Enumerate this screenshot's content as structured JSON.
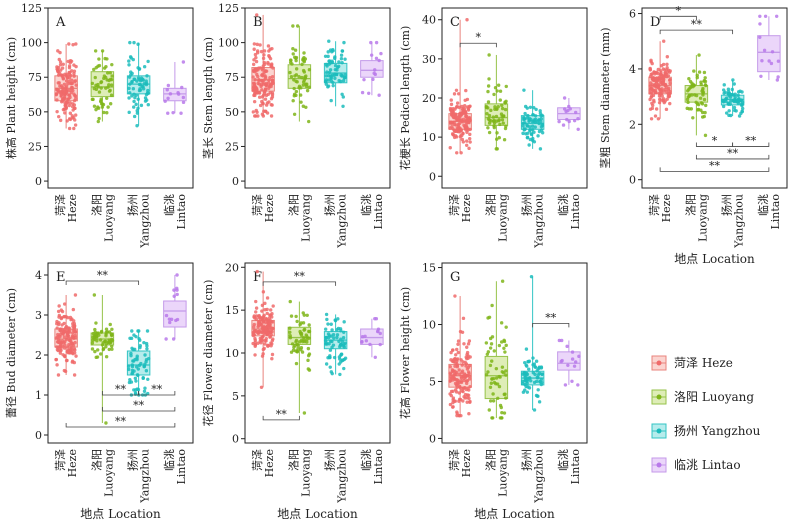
{
  "chart_data": [
    {
      "panel": "A",
      "type": "box",
      "ylabel": "株高 Plant height (cm)",
      "ylim": [
        -5,
        125
      ],
      "yticks": [
        0,
        25,
        50,
        75,
        100,
        125
      ],
      "groups": [
        {
          "n": 150,
          "q1": 58,
          "med": 67,
          "q3": 76,
          "lo": 38,
          "hi": 99
        },
        {
          "n": 60,
          "q1": 61,
          "med": 68,
          "q3": 79,
          "lo": 43,
          "hi": 94
        },
        {
          "n": 70,
          "q1": 63,
          "med": 70,
          "q3": 76,
          "lo": 40,
          "hi": 100
        },
        {
          "n": 14,
          "q1": 58,
          "med": 63,
          "q3": 67,
          "lo": 49,
          "hi": 86
        }
      ],
      "brackets": [],
      "xlabel": ""
    },
    {
      "panel": "B",
      "type": "box",
      "ylabel": "茎长 Stem length (cm)",
      "ylim": [
        -5,
        125
      ],
      "yticks": [
        0,
        25,
        50,
        75,
        100,
        125
      ],
      "groups": [
        {
          "n": 150,
          "q1": 65,
          "med": 73,
          "q3": 82,
          "lo": 47,
          "hi": 120
        },
        {
          "n": 60,
          "q1": 67,
          "med": 74,
          "q3": 84,
          "lo": 43,
          "hi": 112
        },
        {
          "n": 70,
          "q1": 71,
          "med": 78,
          "q3": 85,
          "lo": 54,
          "hi": 101
        },
        {
          "n": 14,
          "q1": 75,
          "med": 80,
          "q3": 87,
          "lo": 62,
          "hi": 100
        }
      ],
      "brackets": [],
      "xlabel": ""
    },
    {
      "panel": "C",
      "type": "box",
      "ylabel": "花梗长 Pedicel length (cm)",
      "ylim": [
        -3,
        43
      ],
      "yticks": [
        0,
        10,
        20,
        30,
        40
      ],
      "groups": [
        {
          "n": 150,
          "q1": 12,
          "med": 14,
          "q3": 16,
          "lo": 6,
          "hi": 40
        },
        {
          "n": 60,
          "q1": 13,
          "med": 15,
          "q3": 18.5,
          "lo": 7,
          "hi": 31
        },
        {
          "n": 70,
          "q1": 12,
          "med": 13.5,
          "q3": 15.5,
          "lo": 7,
          "hi": 22
        },
        {
          "n": 14,
          "q1": 14.5,
          "med": 16,
          "q3": 17.5,
          "lo": 12,
          "hi": 20
        }
      ],
      "brackets": [
        {
          "from": 0,
          "to": 1,
          "y": 34,
          "label": "*",
          "below": false
        }
      ],
      "xlabel": ""
    },
    {
      "panel": "D",
      "type": "box",
      "ylabel": "茎粗 Stem diameter (mm)",
      "ylim": [
        -0.3,
        6.2
      ],
      "yticks": [
        0,
        2,
        4,
        6
      ],
      "groups": [
        {
          "n": 150,
          "q1": 3.1,
          "med": 3.4,
          "q3": 3.7,
          "lo": 2.2,
          "hi": 5.0
        },
        {
          "n": 60,
          "q1": 2.8,
          "med": 3.1,
          "q3": 3.4,
          "lo": 1.6,
          "hi": 4.5
        },
        {
          "n": 70,
          "q1": 2.7,
          "med": 2.9,
          "q3": 3.05,
          "lo": 2.3,
          "hi": 3.6
        },
        {
          "n": 14,
          "q1": 3.9,
          "med": 4.6,
          "q3": 5.2,
          "lo": 3.6,
          "hi": 5.9
        }
      ],
      "brackets": [
        {
          "from": 0,
          "to": 1,
          "y": 5.9,
          "label": "*",
          "below": false
        },
        {
          "from": 0,
          "to": 2,
          "y": 5.4,
          "label": "**",
          "below": false
        },
        {
          "from": 2,
          "to": 3,
          "y": 1.2,
          "label": "**",
          "below": true
        },
        {
          "from": 1,
          "to": 2,
          "y": 1.2,
          "label": "*",
          "below": true
        },
        {
          "from": 1,
          "to": 3,
          "y": 0.75,
          "label": "**",
          "below": true
        },
        {
          "from": 0,
          "to": 3,
          "y": 0.3,
          "label": "**",
          "below": true
        }
      ],
      "xlabel": "地点 Location"
    },
    {
      "panel": "E",
      "type": "box",
      "ylabel": "蕾径 Bud diameter (cm)",
      "ylim": [
        -0.2,
        4.3
      ],
      "yticks": [
        0,
        1,
        2,
        3,
        4
      ],
      "groups": [
        {
          "n": 150,
          "q1": 2.2,
          "med": 2.4,
          "q3": 2.65,
          "lo": 1.5,
          "hi": 3.5
        },
        {
          "n": 60,
          "q1": 2.25,
          "med": 2.4,
          "q3": 2.55,
          "lo": 0.3,
          "hi": 3.5
        },
        {
          "n": 70,
          "q1": 1.5,
          "med": 1.75,
          "q3": 2.1,
          "lo": 1.0,
          "hi": 2.6
        },
        {
          "n": 14,
          "q1": 2.7,
          "med": 3.1,
          "q3": 3.35,
          "lo": 2.4,
          "hi": 4.0
        }
      ],
      "brackets": [
        {
          "from": 0,
          "to": 2,
          "y": 3.85,
          "label": "**",
          "below": false
        },
        {
          "from": 1,
          "to": 2,
          "y": 1.0,
          "label": "**",
          "below": true
        },
        {
          "from": 2,
          "to": 3,
          "y": 1.0,
          "label": "**",
          "below": true
        },
        {
          "from": 1,
          "to": 3,
          "y": 0.6,
          "label": "**",
          "below": true
        },
        {
          "from": 0,
          "to": 3,
          "y": 0.2,
          "label": "**",
          "below": true
        }
      ],
      "xlabel": "地点 Location"
    },
    {
      "panel": "F",
      "type": "box",
      "ylabel": "花径 Flower diameter (cm)",
      "ylim": [
        -0.5,
        20.5
      ],
      "yticks": [
        0,
        5,
        10,
        15,
        20
      ],
      "groups": [
        {
          "n": 150,
          "q1": 12,
          "med": 12.8,
          "q3": 13.8,
          "lo": 6,
          "hi": 19.5
        },
        {
          "n": 60,
          "q1": 11,
          "med": 11.8,
          "q3": 13,
          "lo": 3,
          "hi": 16
        },
        {
          "n": 70,
          "q1": 10.5,
          "med": 11.5,
          "q3": 12.5,
          "lo": 7.5,
          "hi": 14.5
        },
        {
          "n": 14,
          "q1": 11,
          "med": 11.8,
          "q3": 12.8,
          "lo": 9.5,
          "hi": 14
        }
      ],
      "brackets": [
        {
          "from": 0,
          "to": 2,
          "y": 18.3,
          "label": "**",
          "below": false
        },
        {
          "from": 0,
          "to": 1,
          "y": 2.2,
          "label": "**",
          "below": true
        }
      ],
      "xlabel": "地点 Location"
    },
    {
      "panel": "G",
      "type": "box",
      "ylabel": "花高 Flower height (cm)",
      "ylim": [
        -0.4,
        15.4
      ],
      "yticks": [
        0,
        5,
        10,
        15
      ],
      "groups": [
        {
          "n": 150,
          "q1": 4.5,
          "med": 5.5,
          "q3": 6.5,
          "lo": 2.0,
          "hi": 12.5
        },
        {
          "n": 60,
          "q1": 3.5,
          "med": 5.5,
          "q3": 7.2,
          "lo": 1.8,
          "hi": 13.8
        },
        {
          "n": 70,
          "q1": 4.7,
          "med": 5.3,
          "q3": 5.9,
          "lo": 2.5,
          "hi": 14.2
        },
        {
          "n": 14,
          "q1": 6.0,
          "med": 6.6,
          "q3": 7.6,
          "lo": 4.7,
          "hi": 8.6
        }
      ],
      "brackets": [
        {
          "from": 2,
          "to": 3,
          "y": 10.1,
          "label": "**",
          "below": false
        }
      ],
      "xlabel": "地点 Location"
    }
  ],
  "categories": [
    {
      "cn": "菏泽",
      "en": "Heze"
    },
    {
      "cn": "洛阳",
      "en": "Luoyang"
    },
    {
      "cn": "扬州",
      "en": "Yangzhou"
    },
    {
      "cn": "临洮",
      "en": "Lintao"
    }
  ],
  "legend": [
    {
      "label": "菏泽 Heze"
    },
    {
      "label": "洛阳 Luoyang"
    },
    {
      "label": "扬州 Yangzhou"
    },
    {
      "label": "临洮 Lintao"
    }
  ],
  "colors": {
    "dot": [
      "#f06a6a",
      "#7fb519",
      "#1bbcbc",
      "#b979ea"
    ],
    "fill": [
      "#fbd4d0",
      "#deedb7",
      "#b6ecec",
      "#ebd6fa"
    ],
    "edge": [
      "#e8837c",
      "#96c24a",
      "#33c4c4",
      "#c49ae9"
    ]
  }
}
